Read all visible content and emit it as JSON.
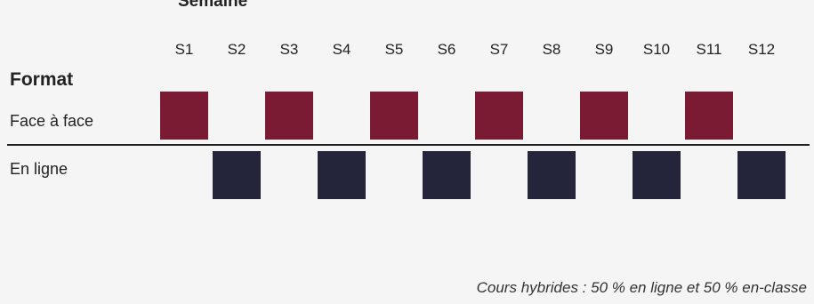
{
  "header": {
    "title": "Semaine"
  },
  "weeks": [
    "S1",
    "S2",
    "S3",
    "S4",
    "S5",
    "S6",
    "S7",
    "S8",
    "S9",
    "S10",
    "S11",
    "S12"
  ],
  "format": {
    "heading": "Format",
    "rows": [
      {
        "label": "Face à face",
        "color": "#7a1a33",
        "weeks": [
          "S1",
          "S3",
          "S5",
          "S7",
          "S9",
          "S11"
        ]
      },
      {
        "label": "En ligne",
        "color": "#24243a",
        "weeks": [
          "S2",
          "S4",
          "S6",
          "S8",
          "S10",
          "S12"
        ]
      }
    ]
  },
  "footnote": "Cours hybrides : 50 % en ligne et 50 % en-classe"
}
